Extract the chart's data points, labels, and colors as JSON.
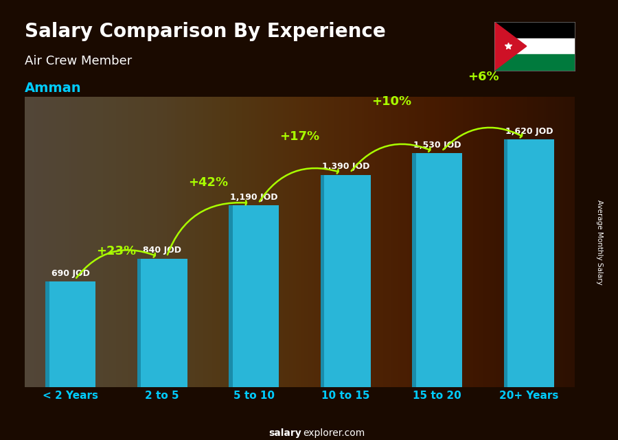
{
  "title": "Salary Comparison By Experience",
  "subtitle": "Air Crew Member",
  "city": "Amman",
  "categories": [
    "< 2 Years",
    "2 to 5",
    "5 to 10",
    "10 to 15",
    "15 to 20",
    "20+ Years"
  ],
  "values": [
    690,
    840,
    1190,
    1390,
    1530,
    1620
  ],
  "value_labels": [
    "690 JOD",
    "840 JOD",
    "1,190 JOD",
    "1,390 JOD",
    "1,530 JOD",
    "1,620 JOD"
  ],
  "pct_labels": [
    "+23%",
    "+42%",
    "+17%",
    "+10%",
    "+6%"
  ],
  "bar_color": "#29b6d8",
  "bar_color_dark": "#1a8caa",
  "title_color": "#ffffff",
  "subtitle_color": "#ffffff",
  "city_color": "#00ccff",
  "value_label_color": "#ffffff",
  "pct_color": "#aaff00",
  "bg_color": "#1a0a00",
  "xlabel_color": "#00ccff",
  "footer_color": "#ffffff",
  "ylabel_text": "Average Monthly Salary",
  "ylabel_color": "#ffffff",
  "ymax": 1900
}
